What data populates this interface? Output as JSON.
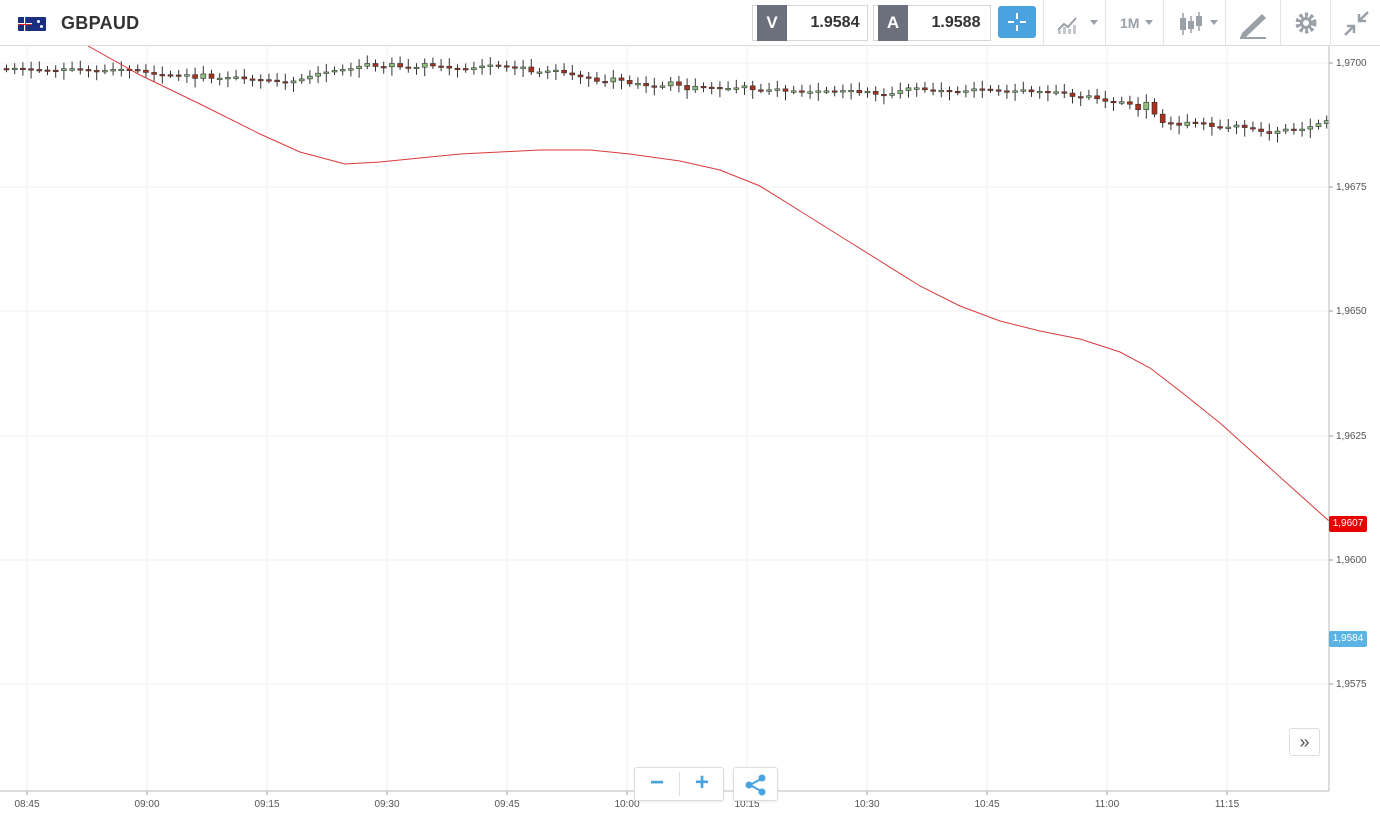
{
  "header": {
    "symbol": "GBPAUD",
    "sell_label": "V",
    "sell_price": "1.9584",
    "buy_label": "A",
    "buy_price": "1.9588",
    "timeframe": "1M",
    "icons": [
      "crosshair-icon",
      "indicators-icon",
      "candlestick-icon",
      "draw-icon",
      "gear-icon",
      "collapse-icon"
    ]
  },
  "chart": {
    "price_labels": [
      "1,9700",
      "1,9675",
      "1,9650",
      "1,9625",
      "1,9600",
      "1,9575"
    ],
    "time_labels": [
      "08:45",
      "09:00",
      "09:15",
      "09:30",
      "09:45",
      "10:00",
      "10:15",
      "10:30",
      "10:45",
      "11:00",
      "11:15"
    ],
    "ma_tag": "1,9607",
    "current_tag": "1,9584",
    "colors": {
      "up": "#8fbf7f",
      "down": "#a8321f",
      "ma": "#d93a3a",
      "current": "#5bb3e3",
      "ma_tag": "#e80000"
    }
  },
  "controls": {
    "zoom_out": "−",
    "zoom_in": "+",
    "share_icon": "share-icon",
    "scroll_right": "»"
  }
}
